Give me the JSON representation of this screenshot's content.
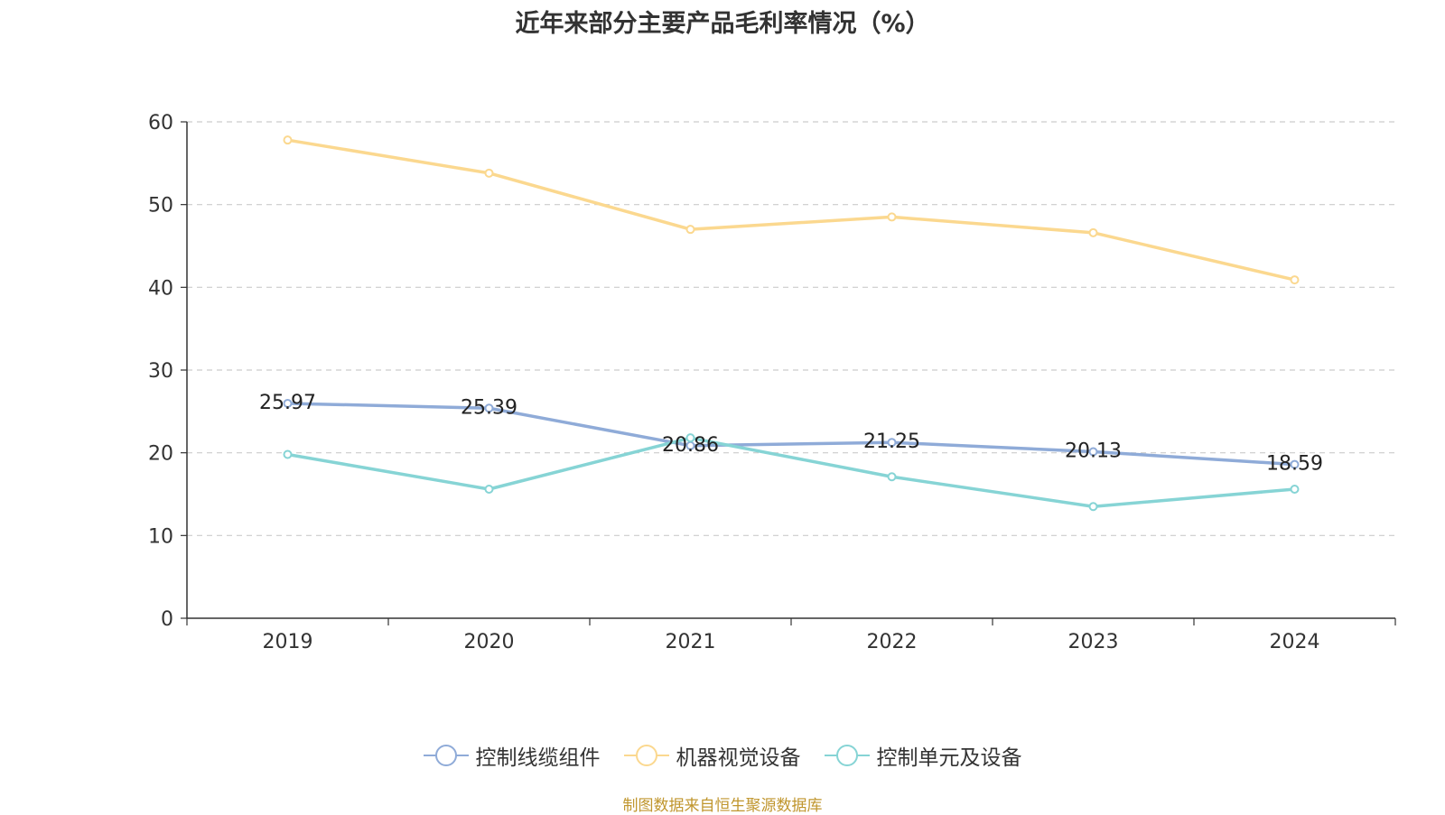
{
  "chart_data": {
    "type": "line",
    "title": "近年来部分主要产品毛利率情况（%）",
    "categories": [
      "2019",
      "2020",
      "2021",
      "2022",
      "2023",
      "2024"
    ],
    "ylim": [
      0,
      60
    ],
    "yticks": [
      "0",
      "10",
      "20",
      "30",
      "40",
      "50",
      "60"
    ],
    "grid": true,
    "legend_position": "bottom",
    "series": [
      {
        "name": "控制线缆组件",
        "values": [
          25.97,
          25.39,
          20.86,
          21.25,
          20.13,
          18.59
        ],
        "labels": [
          "25.97",
          "25.39",
          "20.86",
          "21.25",
          "20.13",
          "18.59"
        ],
        "color": "#8fabd8"
      },
      {
        "name": "机器视觉设备",
        "values": [
          57.8,
          53.8,
          47.0,
          48.5,
          46.6,
          40.9
        ],
        "color": "#fbd88f"
      },
      {
        "name": "控制单元及设备",
        "values": [
          19.8,
          15.6,
          21.8,
          17.1,
          13.5,
          15.6
        ],
        "color": "#86d4d5"
      }
    ]
  },
  "source": "制图数据来自恒生聚源数据库"
}
